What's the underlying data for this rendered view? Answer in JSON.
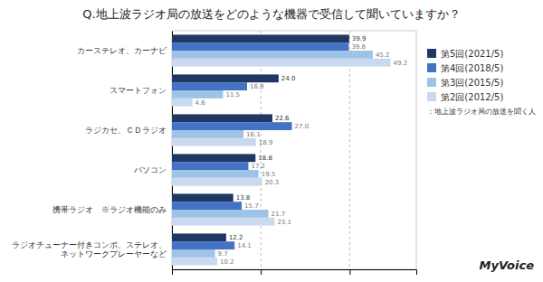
{
  "chart_data": {
    "type": "bar",
    "orientation": "horizontal",
    "title": "Q.地上波ラジオ局の放送をどのような機器で受信して聞いていますか？",
    "categories": [
      "カーステレオ、カーナビ",
      "スマートフォン",
      "ラジカセ、ＣＤラジオ",
      "パソコン",
      "携帯ラジオ　※ラジオ機能のみ",
      "ラジオチューナー付きコンポ、ステレオ、\nネットワークプレーヤーなど"
    ],
    "series": [
      {
        "name": "第5回(2021/5)",
        "color": "#1F3864",
        "values": [
          39.9,
          24.0,
          22.6,
          18.8,
          13.8,
          12.2
        ],
        "value_labels": [
          "39.9",
          "24.0",
          "22.6",
          "18.8",
          "13.8",
          "12.2"
        ]
      },
      {
        "name": "第4回(2018/5)",
        "color": "#4472C4",
        "values": [
          39.8,
          16.9,
          27.0,
          17.2,
          15.7,
          14.1
        ],
        "value_labels": [
          "39.8",
          "16.9",
          "27.0",
          "17.2",
          "15.7",
          "14.1"
        ]
      },
      {
        "name": "第3回(2015/5)",
        "color": "#9DC3E6",
        "values": [
          45.2,
          11.5,
          16.1,
          19.5,
          21.7,
          9.7
        ],
        "value_labels": [
          "45.2",
          "11.5",
          "16.1",
          "19.5",
          "21.7",
          "9.7"
        ]
      },
      {
        "name": "第2回(2012/5)",
        "color": "#C9DAF0",
        "values": [
          49.2,
          4.6,
          18.9,
          20.3,
          23.1,
          10.2
        ],
        "value_labels": [
          "49.2",
          "4.6",
          "18.9",
          "20.3",
          "23.1",
          "10.2"
        ]
      }
    ],
    "xlim": [
      0,
      55
    ],
    "xticks": [
      20,
      40
    ],
    "grid": true,
    "tick_labels": "y",
    "data_labels": true,
    "legend": "right",
    "annotations": [
      "：地上波ラジオ局の放送を聞く人",
      "MyVoice"
    ]
  }
}
